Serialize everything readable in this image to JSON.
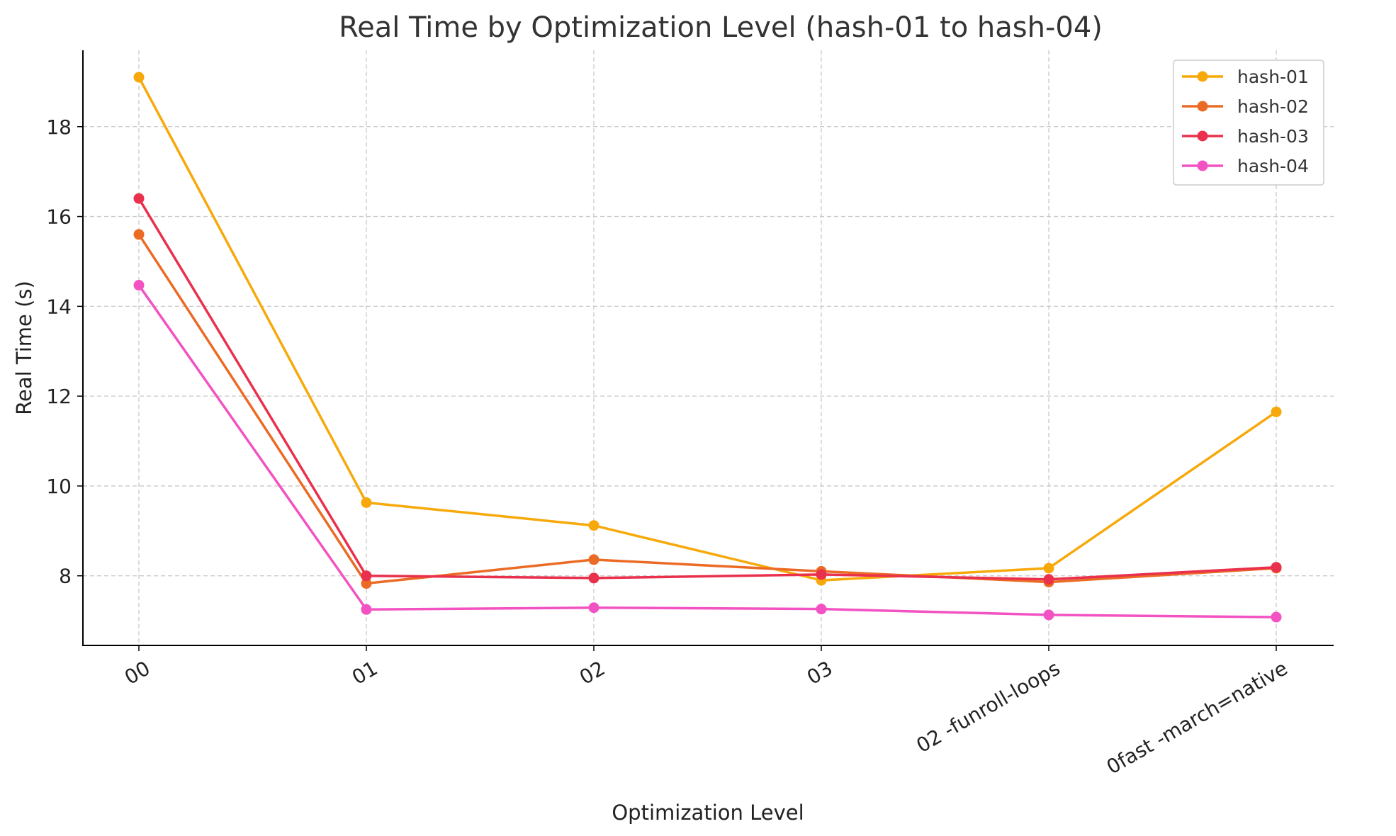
{
  "chart_data": {
    "type": "line",
    "title": "Real Time by Optimization Level (hash-01 to hash-04)",
    "xlabel": "Optimization Level",
    "ylabel": "Real Time (s)",
    "categories": [
      "00",
      "01",
      "02",
      "03",
      "02 -funroll-loops",
      "0fast -march=native"
    ],
    "ylim": [
      6.45,
      19.7
    ],
    "yticks": [
      8,
      10,
      12,
      14,
      16,
      18
    ],
    "grid": true,
    "legend_position": "top-right",
    "series": [
      {
        "name": "hash-01",
        "color": "#F7A90B",
        "values": [
          19.1,
          9.63,
          9.12,
          7.9,
          8.17,
          11.65
        ]
      },
      {
        "name": "hash-02",
        "color": "#EB6B25",
        "values": [
          15.6,
          7.83,
          8.36,
          8.1,
          7.86,
          8.17
        ]
      },
      {
        "name": "hash-03",
        "color": "#E9304C",
        "values": [
          16.4,
          8.0,
          7.95,
          8.03,
          7.92,
          8.19
        ]
      },
      {
        "name": "hash-04",
        "color": "#F252C2",
        "values": [
          14.47,
          7.25,
          7.29,
          7.26,
          7.13,
          7.08
        ]
      }
    ]
  }
}
